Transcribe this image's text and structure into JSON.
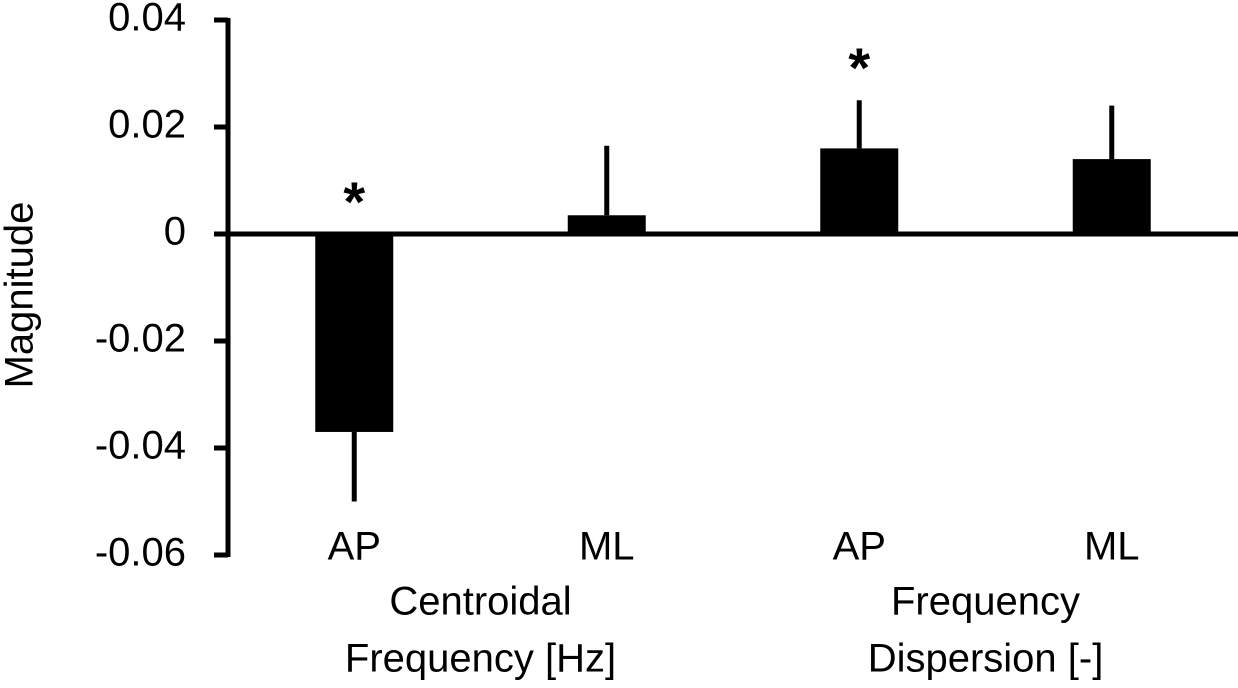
{
  "chart_data": {
    "type": "bar",
    "y_label": "Magnitude",
    "categories": [
      "AP",
      "ML",
      "AP",
      "ML"
    ],
    "values": [
      -0.037,
      0.0035,
      0.016,
      0.014
    ],
    "errors": [
      0.013,
      0.013,
      0.009,
      0.01
    ],
    "significance": [
      "*",
      null,
      "*",
      null
    ],
    "groups": [
      {
        "lines": [
          "Centroidal",
          "Frequency [Hz]"
        ],
        "categories": [
          0,
          1
        ]
      },
      {
        "lines": [
          "Frequency",
          "Dispersion [-]"
        ],
        "categories": [
          2,
          3
        ]
      }
    ],
    "color": "#000000",
    "ylim": [
      -0.06,
      0.04
    ],
    "yticks": [
      0.04,
      0.02,
      0,
      -0.02,
      -0.04,
      -0.06
    ],
    "grid": false
  }
}
